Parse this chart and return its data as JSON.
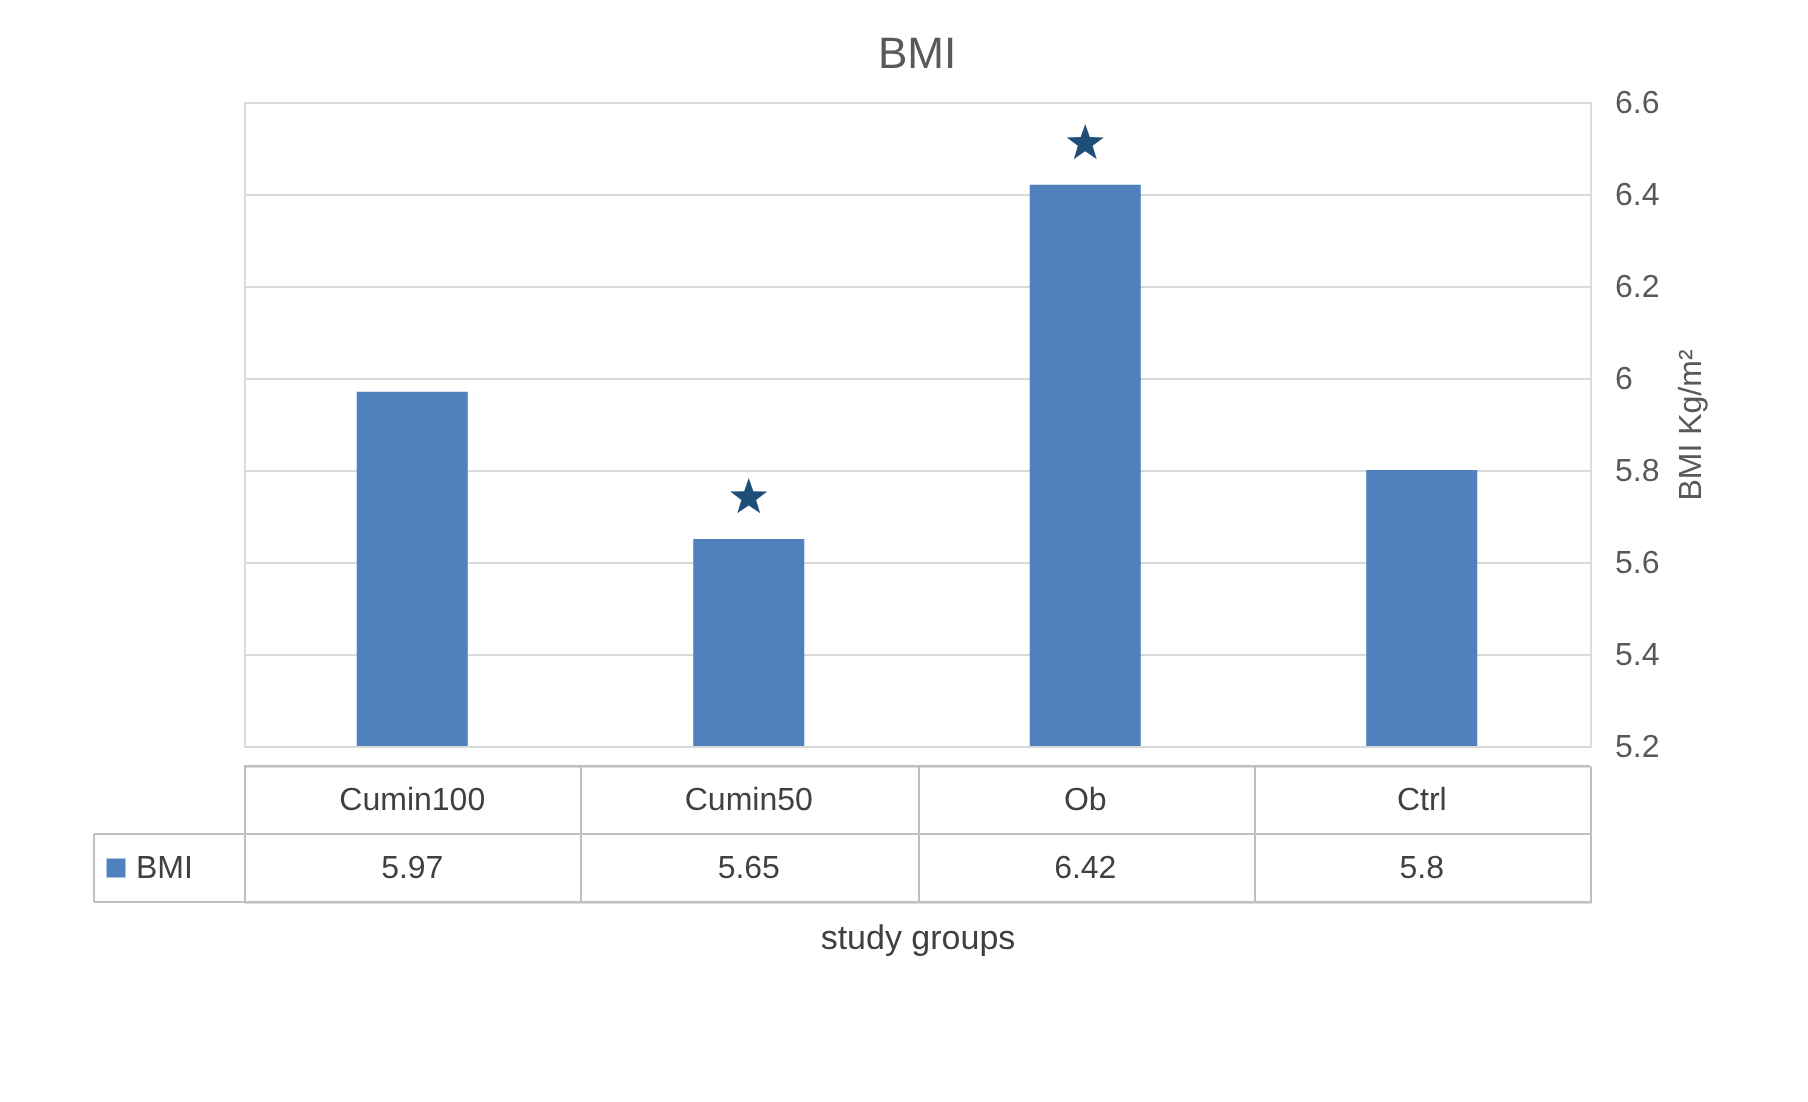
{
  "chart_data": {
    "type": "bar",
    "title": "BMI",
    "xlabel": "study groups",
    "ylabel": "BMI Kg/m²",
    "categories": [
      "Cumin100",
      "Cumin50",
      "Ob",
      "Ctrl"
    ],
    "series": [
      {
        "name": "BMI",
        "color": "#4f81bd",
        "values": [
          5.97,
          5.65,
          6.42,
          5.8
        ],
        "value_labels": [
          "5.97",
          "5.65",
          "6.42",
          "5.8"
        ]
      },
      {
        "type": "scatter",
        "marker": "star",
        "color": "#1f4e79",
        "x": [
          "Cumin50",
          "Ob"
        ],
        "values": [
          5.74,
          6.51
        ]
      }
    ],
    "ylim": [
      5.2,
      6.6
    ],
    "yticks": [
      5.2,
      5.4,
      5.6,
      5.8,
      6,
      6.2,
      6.4,
      6.6
    ],
    "grid": "y",
    "legend": "bottom"
  }
}
